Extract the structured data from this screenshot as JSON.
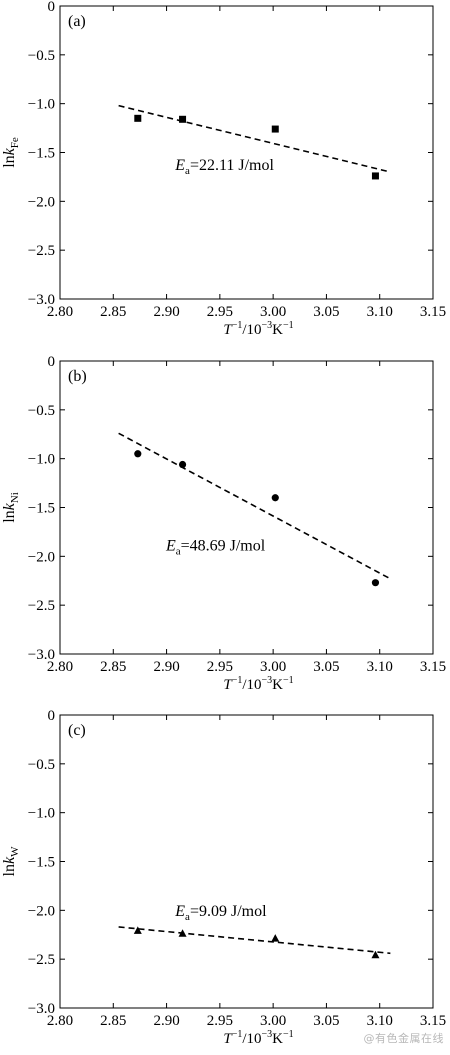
{
  "chart_data": [
    {
      "type": "scatter",
      "panel_label": "(a)",
      "xlabel": {
        "main": "T",
        "sup1": "−1",
        "mid": "/10",
        "sup2": "−3",
        "unit": "K",
        "sup3": "−1"
      },
      "ylabel": {
        "main": "ln",
        "var": "k",
        "sub": "Fe"
      },
      "annotation": {
        "main": "E",
        "sub": "a",
        "value": "=22.11 J/mol"
      },
      "xlim": [
        2.8,
        3.15
      ],
      "ylim": [
        -3.0,
        0
      ],
      "xticks": [
        "2.80",
        "2.85",
        "2.90",
        "2.95",
        "3.00",
        "3.05",
        "3.10",
        "3.15"
      ],
      "yticks": [
        "0",
        "−0.5",
        "−1.0",
        "−1.5",
        "−2.0",
        "−2.5",
        "−3.0"
      ],
      "marker": "square",
      "x": [
        2.873,
        2.915,
        3.002,
        3.096
      ],
      "y": [
        -1.15,
        -1.16,
        -1.26,
        -1.74
      ],
      "fit_line": {
        "x": [
          2.855,
          3.11
        ],
        "y": [
          -1.02,
          -1.7
        ]
      }
    },
    {
      "type": "scatter",
      "panel_label": "(b)",
      "xlabel": {
        "main": "T",
        "sup1": "−1",
        "mid": "/10",
        "sup2": "−3",
        "unit": "K",
        "sup3": "−1"
      },
      "ylabel": {
        "main": "ln",
        "var": "k",
        "sub": "Ni"
      },
      "annotation": {
        "main": "E",
        "sub": "a",
        "value": "=48.69 J/mol"
      },
      "xlim": [
        2.8,
        3.15
      ],
      "ylim": [
        -3.0,
        0
      ],
      "xticks": [
        "2.80",
        "2.85",
        "2.90",
        "2.95",
        "3.00",
        "3.05",
        "3.10",
        "3.15"
      ],
      "yticks": [
        "0",
        "−0.5",
        "−1.0",
        "−1.5",
        "−2.0",
        "−2.5",
        "−3.0"
      ],
      "marker": "circle",
      "x": [
        2.873,
        2.915,
        3.002,
        3.096
      ],
      "y": [
        -0.95,
        -1.06,
        -1.4,
        -2.27
      ],
      "fit_line": {
        "x": [
          2.855,
          3.11
        ],
        "y": [
          -0.74,
          -2.23
        ]
      }
    },
    {
      "type": "scatter",
      "panel_label": "(c)",
      "xlabel": {
        "main": "T",
        "sup1": "−1",
        "mid": "/10",
        "sup2": "−3",
        "unit": "K",
        "sup3": "−1"
      },
      "ylabel": {
        "main": "ln",
        "var": "k",
        "sub": "W"
      },
      "annotation": {
        "main": "E",
        "sub": "a",
        "value": "=9.09 J/mol"
      },
      "xlim": [
        2.8,
        3.15
      ],
      "ylim": [
        -3.0,
        0
      ],
      "xticks": [
        "2.80",
        "2.85",
        "2.90",
        "2.95",
        "3.00",
        "3.05",
        "3.10",
        "3.15"
      ],
      "yticks": [
        "0",
        "−0.5",
        "−1.0",
        "−1.5",
        "−2.0",
        "−2.5",
        "−3.0"
      ],
      "marker": "triangle",
      "x": [
        2.873,
        2.915,
        3.002,
        3.096
      ],
      "y": [
        -2.21,
        -2.24,
        -2.29,
        -2.46
      ],
      "fit_line": {
        "x": [
          2.855,
          3.11
        ],
        "y": [
          -2.17,
          -2.44
        ]
      }
    }
  ],
  "watermark": "@有色金属在线"
}
